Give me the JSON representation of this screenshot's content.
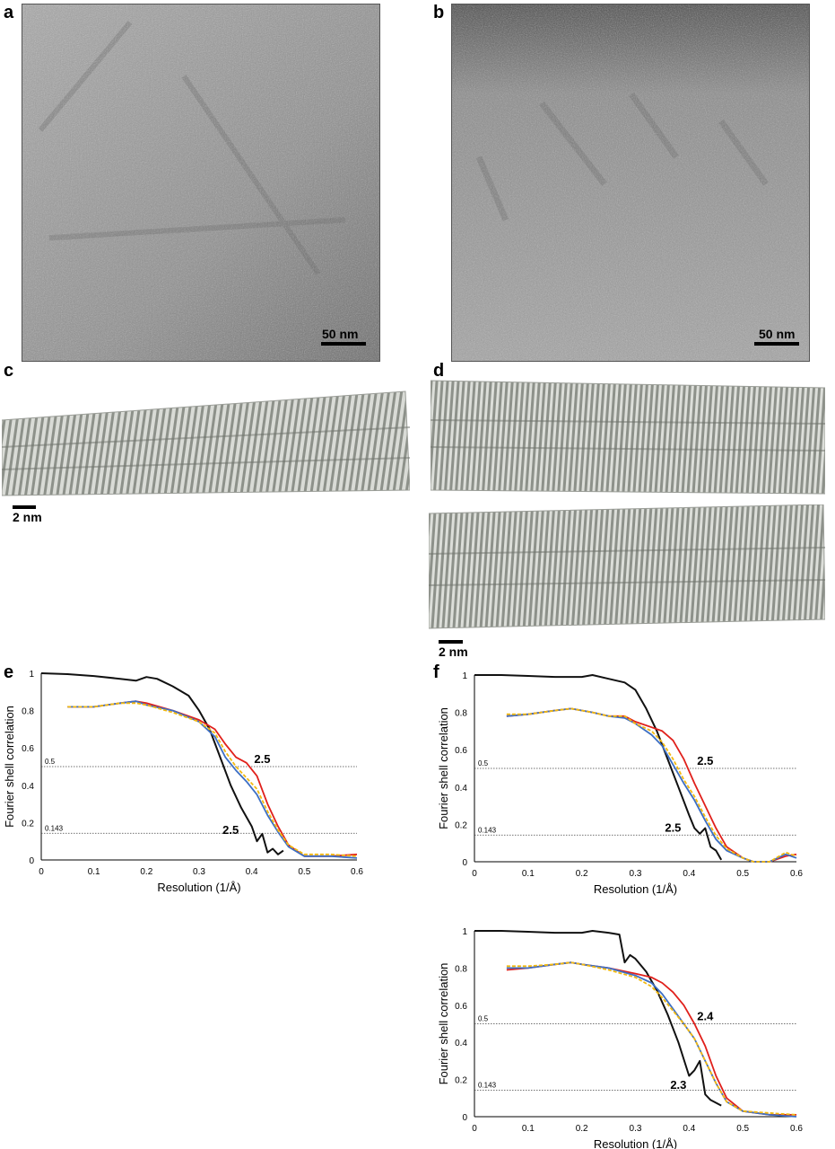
{
  "panels": {
    "a": {
      "label": "a",
      "scalebar": "50 nm"
    },
    "b": {
      "label": "b",
      "scalebar": "50 nm"
    },
    "c": {
      "label": "c",
      "scalebar": "2 nm"
    },
    "d": {
      "label": "d",
      "scalebar": "2 nm"
    },
    "e": {
      "label": "e"
    },
    "f": {
      "label": "f"
    }
  },
  "colors": {
    "black_curve": "#111111",
    "red": "#e0201b",
    "blue": "#3d6fc4",
    "yellow": "#f2b90f",
    "density": "#b9bcb6",
    "micrograph": "#8f8f8f"
  },
  "chart_data": [
    {
      "id": "e",
      "type": "line",
      "xlabel": "Resolution (1/Å)",
      "ylabel": "Fourier shell correlation",
      "xlim": [
        0,
        0.6
      ],
      "ylim": [
        0,
        1
      ],
      "xticks": [
        "0",
        "0.1",
        "0.2",
        "0.3",
        "0.4",
        "0.5",
        "0.6"
      ],
      "yticks": [
        "0",
        "0.2",
        "0.4",
        "0.6",
        "0.8",
        "1"
      ],
      "thresholds": [
        {
          "value": 0.5,
          "label": "0.5"
        },
        {
          "value": 0.143,
          "label": "0.143"
        }
      ],
      "annotations": [
        {
          "text": "2.5",
          "x": 0.42,
          "y": 0.52
        },
        {
          "text": "2.5",
          "x": 0.36,
          "y": 0.14
        }
      ],
      "series": [
        {
          "color": "#111111",
          "x": [
            0,
            0.05,
            0.1,
            0.15,
            0.18,
            0.2,
            0.22,
            0.25,
            0.28,
            0.3,
            0.32,
            0.34,
            0.36,
            0.38,
            0.4,
            0.41,
            0.42,
            0.43,
            0.44,
            0.45,
            0.46
          ],
          "y": [
            1,
            0.995,
            0.985,
            0.97,
            0.96,
            0.98,
            0.97,
            0.93,
            0.88,
            0.8,
            0.7,
            0.55,
            0.4,
            0.28,
            0.18,
            0.1,
            0.14,
            0.04,
            0.06,
            0.03,
            0.05
          ]
        },
        {
          "color": "#e0201b",
          "x": [
            0.05,
            0.1,
            0.15,
            0.18,
            0.2,
            0.25,
            0.3,
            0.33,
            0.35,
            0.37,
            0.39,
            0.41,
            0.43,
            0.45,
            0.47,
            0.5,
            0.55,
            0.6
          ],
          "y": [
            0.82,
            0.82,
            0.84,
            0.85,
            0.84,
            0.8,
            0.75,
            0.7,
            0.62,
            0.55,
            0.52,
            0.45,
            0.3,
            0.18,
            0.08,
            0.02,
            0.02,
            0.03
          ]
        },
        {
          "color": "#3d6fc4",
          "x": [
            0.05,
            0.1,
            0.15,
            0.18,
            0.2,
            0.25,
            0.3,
            0.33,
            0.35,
            0.37,
            0.39,
            0.41,
            0.43,
            0.45,
            0.47,
            0.5,
            0.55,
            0.6
          ],
          "y": [
            0.82,
            0.82,
            0.84,
            0.85,
            0.83,
            0.8,
            0.74,
            0.66,
            0.55,
            0.48,
            0.42,
            0.35,
            0.24,
            0.15,
            0.07,
            0.02,
            0.02,
            0.01
          ]
        },
        {
          "color": "#f2b90f",
          "x": [
            0.05,
            0.1,
            0.15,
            0.18,
            0.2,
            0.25,
            0.3,
            0.33,
            0.35,
            0.37,
            0.39,
            0.41,
            0.43,
            0.45,
            0.47,
            0.5,
            0.55,
            0.6
          ],
          "y": [
            0.82,
            0.82,
            0.84,
            0.84,
            0.83,
            0.79,
            0.74,
            0.68,
            0.58,
            0.5,
            0.44,
            0.38,
            0.26,
            0.16,
            0.08,
            0.03,
            0.03,
            0.02
          ]
        }
      ]
    },
    {
      "id": "f-top",
      "type": "line",
      "xlabel": "Resolution (1/Å)",
      "ylabel": "Fourier shell correlation",
      "xlim": [
        0,
        0.6
      ],
      "ylim": [
        0,
        1
      ],
      "xticks": [
        "0",
        "0.1",
        "0.2",
        "0.3",
        "0.4",
        "0.5",
        "0.6"
      ],
      "yticks": [
        "0",
        "0.2",
        "0.4",
        "0.6",
        "0.8",
        "1"
      ],
      "thresholds": [
        {
          "value": 0.5,
          "label": "0.5"
        },
        {
          "value": 0.143,
          "label": "0.143"
        }
      ],
      "annotations": [
        {
          "text": "2.5",
          "x": 0.43,
          "y": 0.52
        },
        {
          "text": "2.5",
          "x": 0.37,
          "y": 0.16
        }
      ],
      "series": [
        {
          "color": "#111111",
          "x": [
            0,
            0.05,
            0.1,
            0.15,
            0.2,
            0.22,
            0.25,
            0.28,
            0.3,
            0.32,
            0.34,
            0.36,
            0.38,
            0.4,
            0.41,
            0.42,
            0.43,
            0.44,
            0.45,
            0.46
          ],
          "y": [
            1,
            1,
            0.995,
            0.99,
            0.99,
            1,
            0.98,
            0.96,
            0.92,
            0.82,
            0.7,
            0.55,
            0.4,
            0.25,
            0.18,
            0.15,
            0.18,
            0.08,
            0.06,
            0.01
          ]
        },
        {
          "color": "#e0201b",
          "x": [
            0.06,
            0.1,
            0.15,
            0.18,
            0.2,
            0.22,
            0.25,
            0.28,
            0.3,
            0.33,
            0.35,
            0.37,
            0.39,
            0.41,
            0.43,
            0.45,
            0.47,
            0.5,
            0.52,
            0.55,
            0.58,
            0.6
          ],
          "y": [
            0.78,
            0.79,
            0.81,
            0.82,
            0.81,
            0.8,
            0.78,
            0.78,
            0.75,
            0.72,
            0.7,
            0.65,
            0.55,
            0.42,
            0.3,
            0.18,
            0.08,
            0.02,
            0.0,
            0.0,
            0.03,
            0.04
          ]
        },
        {
          "color": "#3d6fc4",
          "x": [
            0.06,
            0.1,
            0.15,
            0.18,
            0.2,
            0.22,
            0.25,
            0.28,
            0.3,
            0.33,
            0.35,
            0.37,
            0.39,
            0.41,
            0.43,
            0.45,
            0.47,
            0.5,
            0.52,
            0.55,
            0.58,
            0.6
          ],
          "y": [
            0.78,
            0.79,
            0.81,
            0.82,
            0.81,
            0.8,
            0.78,
            0.77,
            0.74,
            0.68,
            0.62,
            0.52,
            0.42,
            0.33,
            0.22,
            0.12,
            0.06,
            0.02,
            0.0,
            0.0,
            0.04,
            0.02
          ]
        },
        {
          "color": "#f2b90f",
          "x": [
            0.06,
            0.1,
            0.15,
            0.18,
            0.2,
            0.22,
            0.25,
            0.28,
            0.3,
            0.33,
            0.35,
            0.37,
            0.39,
            0.41,
            0.43,
            0.45,
            0.47,
            0.5,
            0.52,
            0.55,
            0.58,
            0.6
          ],
          "y": [
            0.79,
            0.79,
            0.81,
            0.82,
            0.81,
            0.8,
            0.78,
            0.78,
            0.74,
            0.7,
            0.64,
            0.55,
            0.44,
            0.35,
            0.24,
            0.14,
            0.07,
            0.02,
            0.0,
            0.0,
            0.05,
            0.03
          ]
        }
      ]
    },
    {
      "id": "f-bottom",
      "type": "line",
      "xlabel": "Resolution (1/Å)",
      "ylabel": "Fourier shell correlation",
      "xlim": [
        0,
        0.6
      ],
      "ylim": [
        0,
        1
      ],
      "xticks": [
        "0",
        "0.1",
        "0.2",
        "0.3",
        "0.4",
        "0.5",
        "0.6"
      ],
      "yticks": [
        "0",
        "0.2",
        "0.4",
        "0.6",
        "0.8",
        "1"
      ],
      "thresholds": [
        {
          "value": 0.5,
          "label": "0.5"
        },
        {
          "value": 0.143,
          "label": "0.143"
        }
      ],
      "annotations": [
        {
          "text": "2.4",
          "x": 0.43,
          "y": 0.52
        },
        {
          "text": "2.3",
          "x": 0.38,
          "y": 0.15
        }
      ],
      "series": [
        {
          "color": "#111111",
          "x": [
            0,
            0.05,
            0.1,
            0.15,
            0.2,
            0.22,
            0.25,
            0.27,
            0.28,
            0.29,
            0.3,
            0.32,
            0.34,
            0.36,
            0.38,
            0.4,
            0.41,
            0.42,
            0.43,
            0.44,
            0.46
          ],
          "y": [
            1,
            1,
            0.995,
            0.99,
            0.99,
            1,
            0.99,
            0.98,
            0.83,
            0.87,
            0.85,
            0.78,
            0.68,
            0.55,
            0.4,
            0.22,
            0.25,
            0.3,
            0.12,
            0.09,
            0.06
          ]
        },
        {
          "color": "#e0201b",
          "x": [
            0.06,
            0.1,
            0.15,
            0.18,
            0.2,
            0.25,
            0.3,
            0.33,
            0.35,
            0.37,
            0.39,
            0.41,
            0.43,
            0.45,
            0.47,
            0.5,
            0.55,
            0.6
          ],
          "y": [
            0.79,
            0.8,
            0.82,
            0.83,
            0.82,
            0.8,
            0.77,
            0.75,
            0.72,
            0.67,
            0.6,
            0.5,
            0.38,
            0.22,
            0.1,
            0.03,
            0.01,
            0.01
          ]
        },
        {
          "color": "#3d6fc4",
          "x": [
            0.06,
            0.1,
            0.15,
            0.18,
            0.2,
            0.25,
            0.3,
            0.33,
            0.35,
            0.37,
            0.39,
            0.41,
            0.43,
            0.45,
            0.47,
            0.5,
            0.55,
            0.6
          ],
          "y": [
            0.8,
            0.8,
            0.82,
            0.83,
            0.82,
            0.8,
            0.76,
            0.72,
            0.66,
            0.58,
            0.5,
            0.42,
            0.3,
            0.18,
            0.08,
            0.03,
            0.01,
            0.0
          ]
        },
        {
          "color": "#f2b90f",
          "x": [
            0.06,
            0.1,
            0.15,
            0.18,
            0.2,
            0.25,
            0.3,
            0.33,
            0.35,
            0.37,
            0.39,
            0.41,
            0.43,
            0.45,
            0.47,
            0.5,
            0.55,
            0.6
          ],
          "y": [
            0.81,
            0.81,
            0.82,
            0.83,
            0.82,
            0.79,
            0.75,
            0.7,
            0.64,
            0.57,
            0.5,
            0.42,
            0.3,
            0.18,
            0.08,
            0.03,
            0.02,
            0.01
          ]
        }
      ]
    }
  ]
}
